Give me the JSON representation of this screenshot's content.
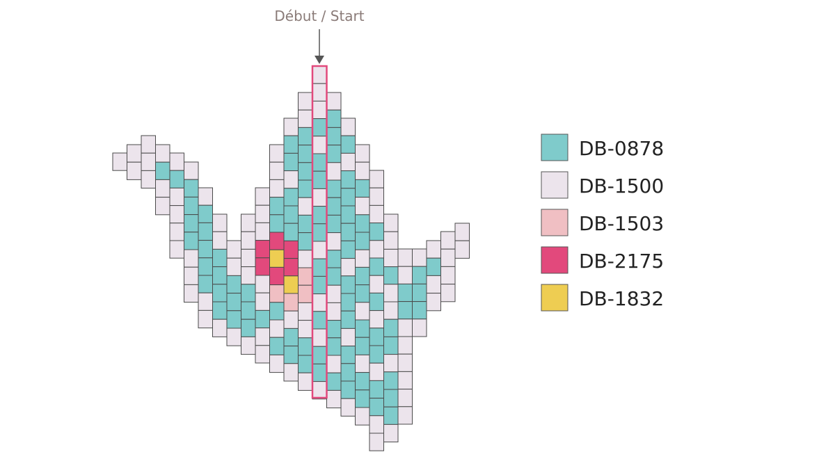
{
  "start_label": "Début / Start",
  "legend": [
    {
      "label": "DB-0878",
      "color": "#7fcbcb"
    },
    {
      "label": "DB-1500",
      "color": "#ece4ec"
    },
    {
      "label": "DB-1503",
      "color": "#f0bfc3"
    },
    {
      "label": "DB-2175",
      "color": "#e2497c"
    },
    {
      "label": "DB-1832",
      "color": "#eecd52"
    }
  ]
}
